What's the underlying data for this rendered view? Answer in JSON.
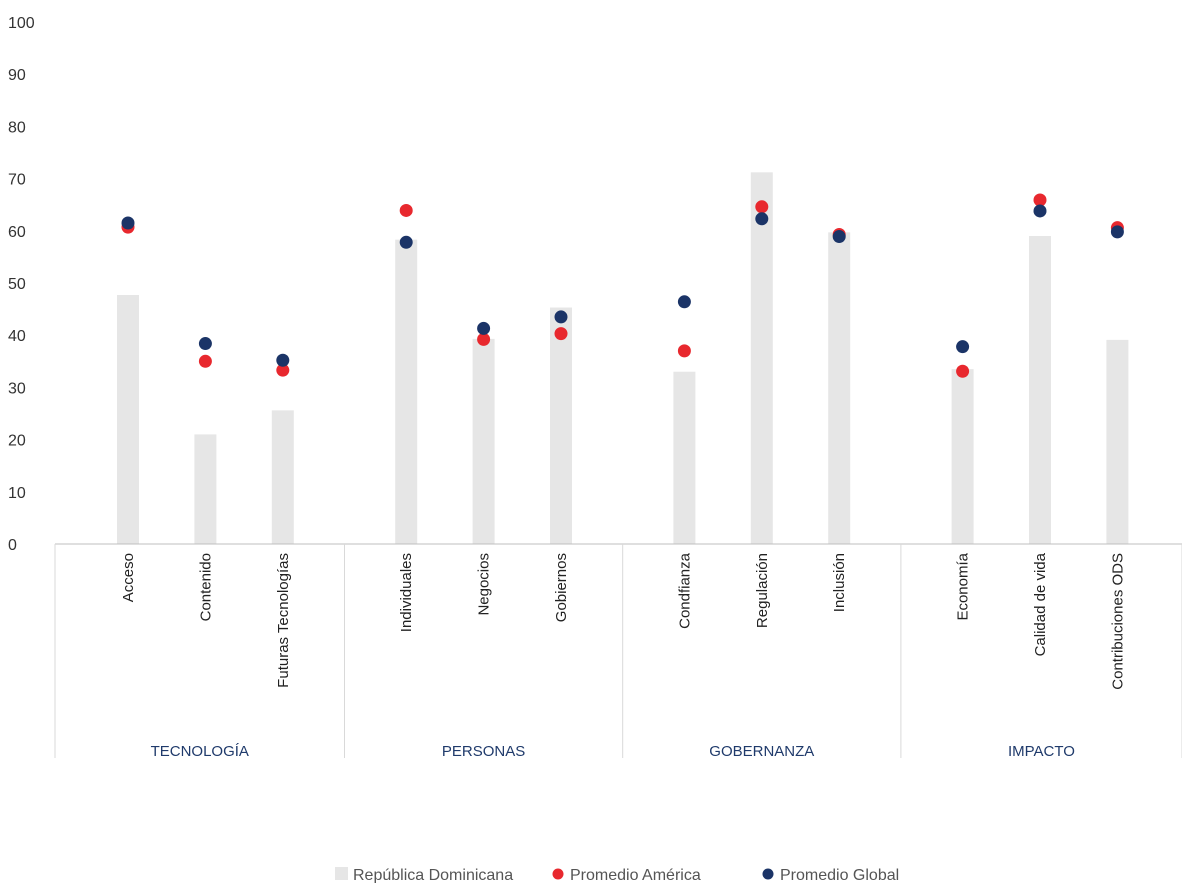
{
  "chart_data": {
    "type": "bar",
    "ylim": [
      0,
      100
    ],
    "yticks": [
      0,
      10,
      20,
      30,
      40,
      50,
      60,
      70,
      80,
      90,
      100
    ],
    "groups": [
      {
        "label": "TECNOLOGÍA",
        "categories": [
          "Acceso",
          "Contenido",
          "Futuras Tecnologías"
        ]
      },
      {
        "label": "PERSONAS",
        "categories": [
          "Individuales",
          "Negocios",
          "Gobiernos"
        ]
      },
      {
        "label": "GOBERNANZA",
        "categories": [
          "Condfianza",
          "Regulación",
          "Inclusión"
        ]
      },
      {
        "label": "IMPACTO",
        "categories": [
          "Economía",
          "Calidad de vida",
          "Contribuciones ODS"
        ]
      }
    ],
    "categories": [
      "Acceso",
      "Contenido",
      "Futuras Tecnologías",
      "Individuales",
      "Negocios",
      "Gobiernos",
      "Condfianza",
      "Regulación",
      "Inclusión",
      "Economía",
      "Calidad de vida",
      "Contribuciones ODS"
    ],
    "series": [
      {
        "name": "República Dominicana",
        "kind": "bar",
        "color": "#e6e6e6",
        "values": [
          47.7,
          21.0,
          25.6,
          58.3,
          39.3,
          45.3,
          33.0,
          71.2,
          59.7,
          33.5,
          59.0,
          39.1
        ]
      },
      {
        "name": "Promedio América",
        "kind": "dot",
        "color": "#e8282e",
        "values": [
          60.7,
          35.0,
          33.3,
          63.9,
          39.2,
          40.3,
          37.0,
          64.6,
          59.3,
          33.1,
          65.9,
          60.6
        ]
      },
      {
        "name": "Promedio Global",
        "kind": "dot",
        "color": "#1b3467",
        "values": [
          61.5,
          38.4,
          35.2,
          57.8,
          41.3,
          43.5,
          46.4,
          62.3,
          58.9,
          37.8,
          63.8,
          59.8
        ]
      }
    ],
    "legend_position": "bottom-center",
    "grid": false
  }
}
